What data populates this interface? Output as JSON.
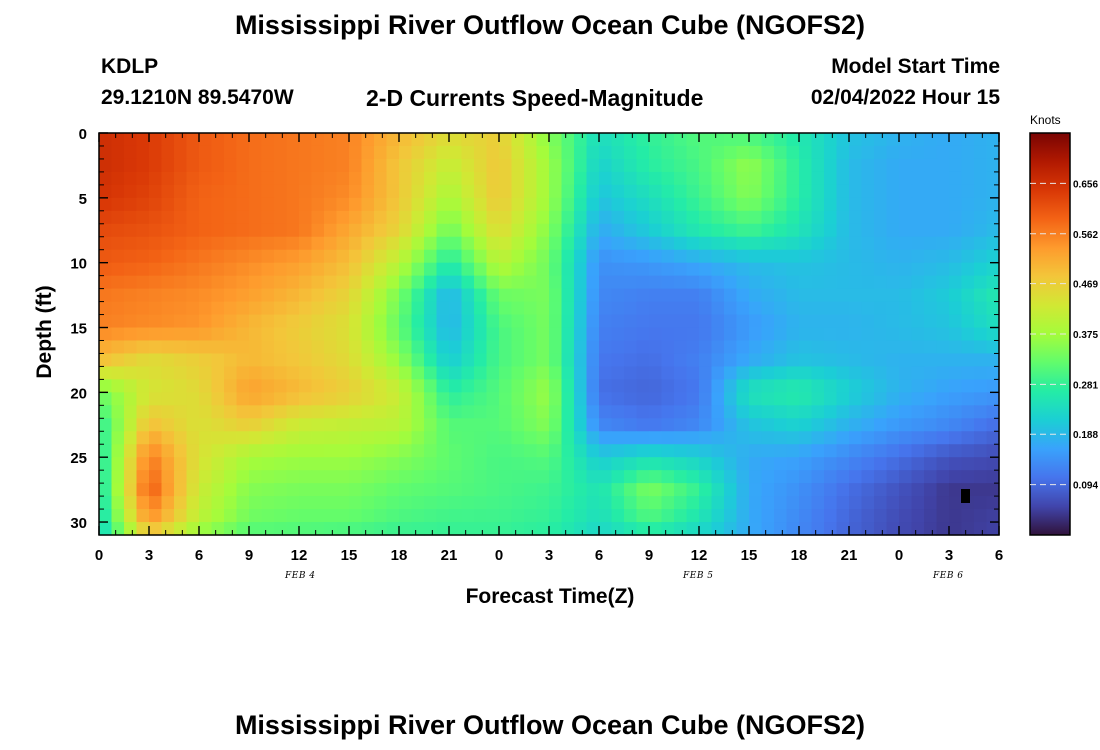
{
  "titles": {
    "top": "Mississippi River Outflow Ocean Cube (NGOFS2)",
    "bottom": "Mississippi River Outflow Ocean Cube (NGOFS2)"
  },
  "header": {
    "station": "KDLP",
    "coordinates": "29.1210N  89.5470W",
    "chart_title": "2-D Currents Speed-Magnitude",
    "model_label": "Model Start Time",
    "model_time": "02/04/2022 Hour 15"
  },
  "colorbar": {
    "units": "Knots",
    "tick_labels": [
      "0.656",
      "0.562",
      "0.469",
      "0.375",
      "0.281",
      "0.188",
      "0.094"
    ]
  },
  "chart_data": {
    "type": "heatmap",
    "title": "2-D Currents Speed-Magnitude",
    "xlabel": "Forecast Time(Z)",
    "ylabel": "Depth (ft)",
    "units": "Knots",
    "x_tick_labels": [
      "0",
      "3",
      "6",
      "9",
      "12",
      "15",
      "18",
      "21",
      "0",
      "3",
      "6",
      "9",
      "12",
      "15",
      "18",
      "21",
      "0",
      "3",
      "6"
    ],
    "y_tick_labels": [
      "0",
      "5",
      "10",
      "15",
      "20",
      "25",
      "30"
    ],
    "date_labels": [
      "FEB 4",
      "FEB 5",
      "FEB 6"
    ],
    "x_range_hours": [
      0,
      54
    ],
    "ylim": [
      0,
      31
    ],
    "y_inverted": true,
    "value_range": [
      0,
      0.75
    ],
    "colorbar_ticks": [
      0.656,
      0.562,
      0.469,
      0.375,
      0.281,
      0.188,
      0.094
    ],
    "colormap": [
      "#30123b",
      "#4145ab",
      "#4675ed",
      "#39a2fc",
      "#1bcfd4",
      "#24eca6",
      "#61fc6c",
      "#a4fc3b",
      "#d1e834",
      "#f3c63a",
      "#fe9b2d",
      "#f36315",
      "#d93806",
      "#b11901",
      "#7a0403"
    ],
    "x_hours": [
      0,
      3,
      6,
      9,
      12,
      15,
      18,
      21,
      24,
      27,
      30,
      33,
      36,
      39,
      42,
      45,
      48,
      51,
      54
    ],
    "depths_ft": [
      0,
      2.5,
      5,
      7.5,
      10,
      12.5,
      15,
      17.5,
      20,
      22.5,
      25,
      27.5,
      30,
      31
    ],
    "values": [
      [
        0.66,
        0.64,
        0.6,
        0.58,
        0.57,
        0.56,
        0.5,
        0.45,
        0.47,
        0.35,
        0.24,
        0.28,
        0.31,
        0.3,
        0.26,
        0.2,
        0.18,
        0.17,
        0.18
      ],
      [
        0.66,
        0.64,
        0.6,
        0.58,
        0.57,
        0.56,
        0.48,
        0.41,
        0.48,
        0.37,
        0.22,
        0.27,
        0.3,
        0.36,
        0.27,
        0.19,
        0.17,
        0.17,
        0.18
      ],
      [
        0.65,
        0.63,
        0.59,
        0.58,
        0.57,
        0.55,
        0.48,
        0.38,
        0.48,
        0.37,
        0.2,
        0.24,
        0.29,
        0.35,
        0.27,
        0.19,
        0.17,
        0.17,
        0.18
      ],
      [
        0.62,
        0.61,
        0.59,
        0.58,
        0.57,
        0.52,
        0.46,
        0.33,
        0.45,
        0.35,
        0.17,
        0.21,
        0.26,
        0.29,
        0.25,
        0.19,
        0.17,
        0.17,
        0.19
      ],
      [
        0.6,
        0.59,
        0.57,
        0.55,
        0.53,
        0.49,
        0.4,
        0.26,
        0.4,
        0.33,
        0.14,
        0.15,
        0.17,
        0.19,
        0.2,
        0.19,
        0.18,
        0.19,
        0.22
      ],
      [
        0.57,
        0.56,
        0.55,
        0.53,
        0.5,
        0.46,
        0.34,
        0.18,
        0.33,
        0.34,
        0.13,
        0.12,
        0.12,
        0.17,
        0.19,
        0.19,
        0.19,
        0.21,
        0.26
      ],
      [
        0.56,
        0.55,
        0.54,
        0.5,
        0.47,
        0.44,
        0.32,
        0.18,
        0.3,
        0.34,
        0.12,
        0.11,
        0.11,
        0.15,
        0.18,
        0.18,
        0.19,
        0.2,
        0.24
      ],
      [
        0.49,
        0.45,
        0.47,
        0.5,
        0.48,
        0.45,
        0.36,
        0.21,
        0.3,
        0.34,
        0.11,
        0.1,
        0.12,
        0.17,
        0.2,
        0.19,
        0.18,
        0.18,
        0.18
      ],
      [
        0.33,
        0.43,
        0.45,
        0.53,
        0.5,
        0.47,
        0.42,
        0.27,
        0.31,
        0.37,
        0.1,
        0.09,
        0.11,
        0.25,
        0.27,
        0.22,
        0.18,
        0.16,
        0.15
      ],
      [
        0.27,
        0.49,
        0.44,
        0.47,
        0.42,
        0.41,
        0.4,
        0.31,
        0.31,
        0.35,
        0.13,
        0.11,
        0.13,
        0.2,
        0.22,
        0.18,
        0.15,
        0.13,
        0.1
      ],
      [
        0.25,
        0.57,
        0.44,
        0.38,
        0.37,
        0.37,
        0.35,
        0.32,
        0.3,
        0.31,
        0.21,
        0.24,
        0.22,
        0.17,
        0.16,
        0.13,
        0.1,
        0.07,
        0.06
      ],
      [
        0.24,
        0.6,
        0.42,
        0.35,
        0.34,
        0.34,
        0.32,
        0.31,
        0.3,
        0.29,
        0.25,
        0.34,
        0.28,
        0.17,
        0.14,
        0.1,
        0.07,
        0.04,
        0.04
      ],
      [
        0.23,
        0.54,
        0.4,
        0.33,
        0.32,
        0.32,
        0.3,
        0.29,
        0.29,
        0.28,
        0.24,
        0.3,
        0.25,
        0.17,
        0.13,
        0.09,
        0.06,
        0.04,
        0.05
      ],
      [
        0.22,
        0.45,
        0.35,
        0.3,
        0.3,
        0.29,
        0.28,
        0.28,
        0.28,
        0.27,
        0.22,
        0.25,
        0.22,
        0.17,
        0.13,
        0.09,
        0.06,
        0.04,
        0.05
      ]
    ]
  }
}
